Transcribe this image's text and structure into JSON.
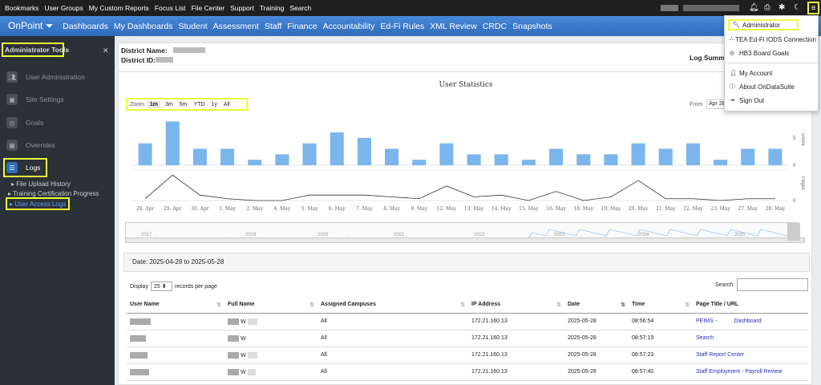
{
  "topbar": {
    "links": [
      "Bookmarks",
      "User Groups",
      "My Custom Reports",
      "Focus List",
      "File Center",
      "Support",
      "Training",
      "Search"
    ]
  },
  "navbar": {
    "brand": "OnPoint ⏷",
    "items": [
      "Dashboards",
      "My Dashboards",
      "Student",
      "Assessment",
      "Staff",
      "Finance",
      "Accountability",
      "Ed-Fi Rules",
      "XML Review",
      "CRDC",
      "Snapshots"
    ]
  },
  "sidebar": {
    "title": "Administrator Tools",
    "items": [
      "User Administration",
      "Site Settings",
      "Goals",
      "Overrides",
      "Logs"
    ],
    "subitems": [
      "File Upload History",
      "Training Certification Progress",
      "User Access Logs"
    ]
  },
  "header": {
    "district_name_label": "District Name:",
    "district_id_label": "District ID:",
    "log_summary": "Log Summa"
  },
  "chart": {
    "title": "User Statistics",
    "zoom_label": "Zoom",
    "zoom_options": [
      "1m",
      "3m",
      "6m",
      "YTD",
      "1y",
      "All"
    ],
    "from_label": "From",
    "from_value": "Apr 28",
    "users_axis": "Users",
    "pages_axis": "Pages",
    "nav_years": [
      "2017",
      "2019",
      "2020",
      "2021",
      "2022",
      "2023",
      "2024",
      "2025"
    ]
  },
  "chart_data": {
    "type": "bar",
    "x": [
      "28. Apr",
      "29. Apr",
      "30. Apr",
      "1. May",
      "2. May",
      "4. May",
      "5. May",
      "6. May",
      "7. May",
      "8. May",
      "9. May",
      "12. May",
      "13. May",
      "14. May",
      "15. May",
      "16. May",
      "18. May",
      "19. May",
      "20. May",
      "21. May",
      "22. May",
      "23. May",
      "27. May",
      "28. May"
    ],
    "users": [
      4,
      8,
      3,
      3,
      1,
      2,
      4,
      6,
      5,
      3,
      1,
      4,
      2,
      2,
      1,
      3,
      2,
      2,
      4,
      3,
      4,
      1,
      3,
      3
    ],
    "pages": [
      1,
      14,
      3,
      1,
      0,
      0,
      3,
      3,
      3,
      2,
      1,
      8,
      2,
      3,
      0,
      5,
      0,
      2,
      11,
      1,
      1,
      0,
      1,
      1
    ],
    "users_ticks": [
      0,
      5
    ],
    "pages_ticks": [
      0
    ]
  },
  "table": {
    "date_range": "Date: 2025-04-28 to 2025-05-28",
    "display_label": "Display",
    "display_value": "25",
    "records_label": "records per page",
    "search_label": "Search:",
    "headers": [
      "User Name",
      "Full Name",
      "Assigned Campuses",
      "IP Address",
      "Date",
      "Time",
      "Page Title / URL"
    ],
    "rows": [
      {
        "campus": "All",
        "ip": "172.21.160.13",
        "date": "2025-05-28",
        "time": "08:56:54",
        "page": "PEIMS -           Dashboard"
      },
      {
        "campus": "All",
        "ip": "172.21.160.13",
        "date": "2025-05-28",
        "time": "08:57:19",
        "page": "Search"
      },
      {
        "campus": "All",
        "ip": "172.21.160.13",
        "date": "2025-05-28",
        "time": "08:57:23",
        "page": "Staff Report Center"
      },
      {
        "campus": "All",
        "ip": "172.21.160.13",
        "date": "2025-05-28",
        "time": "08:57:40",
        "page": "Staff Employment - Payroll Review"
      }
    ]
  },
  "dropdown": {
    "items": [
      "Administrator",
      "TEA Ed-Fi IODS Connection",
      "HB3 Board Goals",
      "My Account",
      "About OnDataSuite",
      "Sign Out"
    ]
  }
}
